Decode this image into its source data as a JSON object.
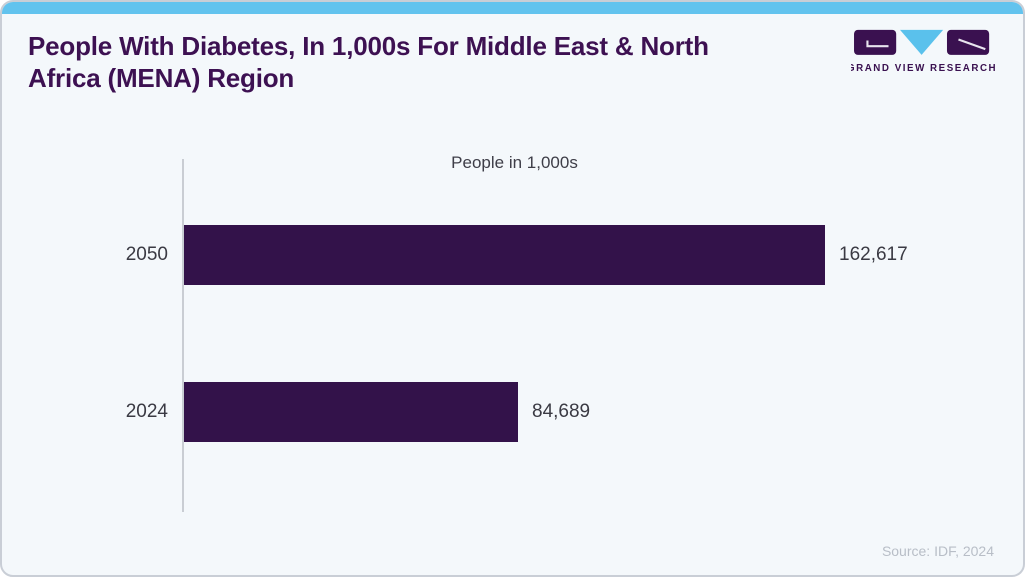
{
  "header": {
    "title": "People With Diabetes, In 1,000s For Middle East & North Africa (MENA) Region",
    "logo_text": "GRAND VIEW RESEARCH"
  },
  "chart_data": {
    "type": "bar",
    "orientation": "horizontal",
    "title": "People in 1,000s",
    "categories": [
      "2050",
      "2024"
    ],
    "values": [
      162617,
      84689
    ],
    "value_labels": [
      "162,617",
      "84,689"
    ],
    "xlim": [
      0,
      162617
    ],
    "grid": false,
    "legend": false,
    "bar_color": "#33124a"
  },
  "footer": {
    "source": "Source: IDF, 2024"
  },
  "colors": {
    "accent_strip": "#62c3ee",
    "card_background": "#f4f8fb",
    "title_purple": "#3d1152",
    "bar_purple": "#33124a",
    "label_text": "#3a3a43",
    "logo_blue": "#5ac1ec",
    "source_gray": "#b8bec7"
  }
}
